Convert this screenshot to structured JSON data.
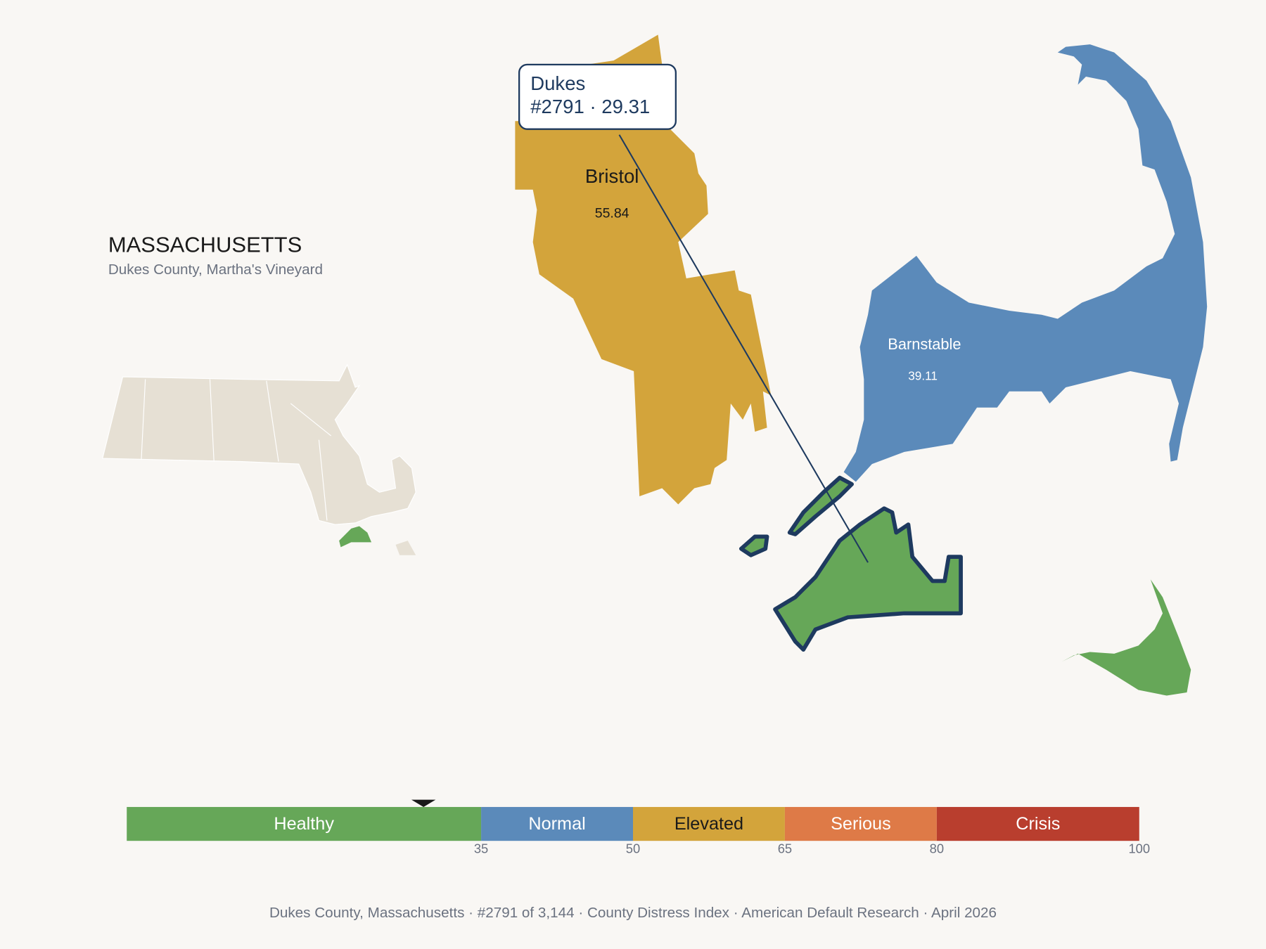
{
  "header": {
    "title": "MASSACHUSETTS",
    "subtitle": "Dukes County, Martha's Vineyard"
  },
  "tooltip": {
    "name": "Dukes",
    "detail": "#2791 · 29.31"
  },
  "counties": [
    {
      "name": "Bristol",
      "value": 55.84
    },
    {
      "name": "Barnstable",
      "value": 39.11
    }
  ],
  "chart_data": {
    "type": "scale",
    "categories": [
      "Healthy",
      "Normal",
      "Elevated",
      "Serious",
      "Crisis"
    ],
    "colors": [
      "#66a758",
      "#5b8aba",
      "#d3a43b",
      "#de7a47",
      "#b93e2e"
    ],
    "xlim": [
      0,
      100
    ],
    "xticks": [
      35,
      50,
      65,
      80,
      100
    ],
    "marker": 29.31
  },
  "footer": "Dukes County, Massachusetts  ·  #2791 of 3,144  ·  County Distress Index  ·  American Default Research  ·  April 2026"
}
